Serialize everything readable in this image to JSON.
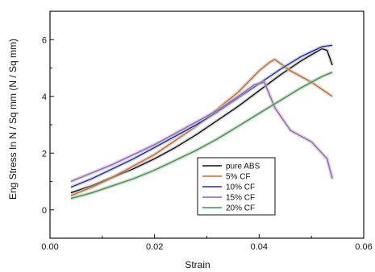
{
  "chart_data": {
    "type": "line",
    "title": "",
    "xlabel": "Strain",
    "ylabel": "Eng Stress In N / Sq mm (N / Sq mm)",
    "xlim": [
      0.0,
      0.06
    ],
    "ylim": [
      -1,
      7
    ],
    "xticks": [
      "0.00",
      "0.02",
      "0.04",
      "0.06"
    ],
    "yticks": [
      "0",
      "2",
      "4",
      "6"
    ],
    "xtick_values": [
      0.0,
      0.02,
      0.04,
      0.06
    ],
    "ytick_values": [
      0,
      2,
      4,
      6
    ],
    "grid": false,
    "legend_position": "bottom-right",
    "series": [
      {
        "name": "pure ABS",
        "color": "#111111",
        "x": [
          0.004,
          0.008,
          0.012,
          0.016,
          0.02,
          0.024,
          0.028,
          0.032,
          0.036,
          0.04,
          0.044,
          0.048,
          0.052,
          0.053,
          0.054
        ],
        "y": [
          0.6,
          0.85,
          1.15,
          1.45,
          1.8,
          2.2,
          2.65,
          3.15,
          3.65,
          4.2,
          4.75,
          5.25,
          5.68,
          5.62,
          5.1
        ]
      },
      {
        "name": "5%  CF",
        "color": "#d2691e",
        "x": [
          0.004,
          0.008,
          0.012,
          0.016,
          0.02,
          0.024,
          0.028,
          0.032,
          0.036,
          0.04,
          0.042,
          0.043,
          0.046,
          0.05,
          0.054
        ],
        "y": [
          0.5,
          0.8,
          1.15,
          1.55,
          1.95,
          2.45,
          2.95,
          3.55,
          4.15,
          4.9,
          5.2,
          5.3,
          4.9,
          4.5,
          4.0
        ]
      },
      {
        "name": "10% CF",
        "color": "#1f2fb0",
        "x": [
          0.004,
          0.008,
          0.012,
          0.016,
          0.02,
          0.024,
          0.028,
          0.032,
          0.036,
          0.04,
          0.044,
          0.048,
          0.052,
          0.054
        ],
        "y": [
          0.8,
          1.1,
          1.45,
          1.8,
          2.2,
          2.6,
          3.0,
          3.45,
          3.95,
          4.45,
          4.95,
          5.4,
          5.75,
          5.8
        ]
      },
      {
        "name": "15% CF",
        "color": "#9b5fc0",
        "x": [
          0.004,
          0.008,
          0.012,
          0.016,
          0.02,
          0.024,
          0.028,
          0.032,
          0.036,
          0.039,
          0.041,
          0.043,
          0.046,
          0.05,
          0.053,
          0.054
        ],
        "y": [
          1.0,
          1.3,
          1.6,
          1.95,
          2.3,
          2.7,
          3.1,
          3.5,
          4.0,
          4.4,
          4.5,
          3.6,
          2.8,
          2.4,
          1.8,
          1.1
        ]
      },
      {
        "name": "20% CF",
        "color": "#2e9e3e",
        "x": [
          0.004,
          0.008,
          0.012,
          0.016,
          0.02,
          0.024,
          0.028,
          0.032,
          0.036,
          0.04,
          0.044,
          0.048,
          0.052,
          0.054
        ],
        "y": [
          0.4,
          0.6,
          0.85,
          1.1,
          1.4,
          1.75,
          2.1,
          2.5,
          2.95,
          3.4,
          3.85,
          4.3,
          4.7,
          4.85
        ]
      }
    ]
  }
}
